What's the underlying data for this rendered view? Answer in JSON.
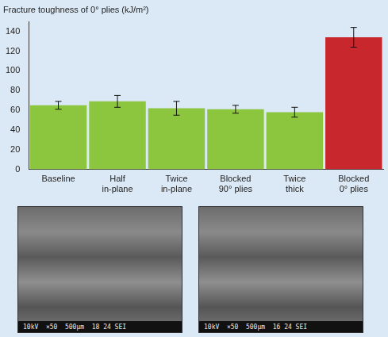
{
  "chart_data": {
    "type": "bar",
    "title": "Fracture toughness of 0° plies (kJ/m²)",
    "categories": [
      "Baseline",
      "Half in-plane",
      "Twice in-plane",
      "Blocked 90° plies",
      "Twice thick",
      "Blocked 0° plies"
    ],
    "values": [
      65,
      69,
      62,
      61,
      58,
      134
    ],
    "errors": [
      4,
      6,
      7,
      4,
      5,
      10
    ],
    "colors": [
      "#8cc63e",
      "#8cc63e",
      "#8cc63e",
      "#8cc63e",
      "#8cc63e",
      "#c8282d"
    ],
    "ylim": [
      0,
      150
    ],
    "yticks": [
      0,
      20,
      40,
      60,
      80,
      100,
      120,
      140
    ],
    "grid": false,
    "annotations": [
      "10kV  ×50  500μm  18 24 SEI",
      "10kV  ×50  500μm  16 24 SEI"
    ]
  }
}
